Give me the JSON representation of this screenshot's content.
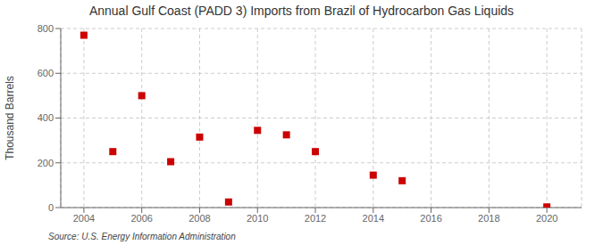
{
  "chart_data": {
    "type": "scatter",
    "title": "Annual Gulf Coast (PADD 3) Imports from Brazil of Hydrocarbon Gas Liquids",
    "ylabel": "Thousand Barrels",
    "annotations": [
      "Source: U.S. Energy Information Administration"
    ],
    "x": [
      2004,
      2005,
      2006,
      2007,
      2008,
      2009,
      2010,
      2011,
      2012,
      2014,
      2015,
      2020
    ],
    "values": [
      770,
      250,
      500,
      205,
      315,
      25,
      345,
      325,
      250,
      145,
      120,
      3
    ],
    "xlim": [
      2003.2,
      2021.2
    ],
    "ylim": [
      0,
      800
    ],
    "xticks": [
      2004,
      2006,
      2008,
      2010,
      2012,
      2014,
      2016,
      2018,
      2020
    ],
    "yticks": [
      0,
      200,
      400,
      600,
      800
    ],
    "color": "#cc0000",
    "marker": "square",
    "grid": true
  }
}
